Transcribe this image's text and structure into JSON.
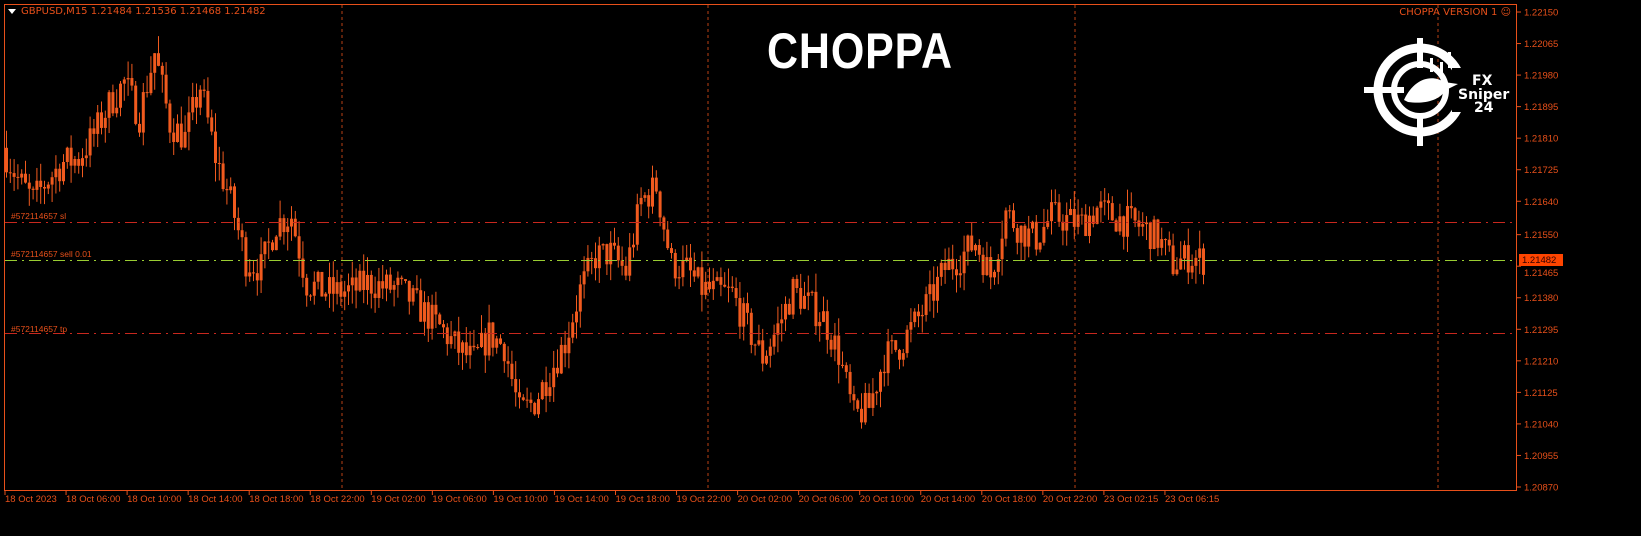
{
  "header": {
    "symbol_line": "GBPUSD,M15  1.21484 1.21536 1.21468 1.21482",
    "indicator_title": "CHOPPA",
    "version_label": "CHOPPA VERSION 1",
    "version_icon": "smiley-icon"
  },
  "logo": {
    "line1": "FX",
    "line2": "Sniper",
    "line3": "24"
  },
  "colors": {
    "candle": "#f05a1e",
    "axis": "#e8501a",
    "bid_line": "#9acd32",
    "sl_tp_line": "#c8281e",
    "grid": "#e8501a",
    "price_box": "#ff4500"
  },
  "orders": {
    "sl": {
      "label": "#572114657 sl",
      "price": 1.21585
    },
    "entry": {
      "label": "#572114657 sell 0.01",
      "price": 1.21482
    },
    "tp": {
      "label": "#572114657 tp",
      "price": 1.21285
    }
  },
  "current_price": "1.21482",
  "chart_data": {
    "type": "candlestick",
    "symbol": "GBPUSD",
    "timeframe": "M15",
    "ylim": [
      1.2087,
      1.2215
    ],
    "y_ticks": [
      "1.22150",
      "1.22065",
      "1.21980",
      "1.21895",
      "1.21810",
      "1.21725",
      "1.21640",
      "1.21550",
      "1.21465",
      "1.21380",
      "1.21295",
      "1.21210",
      "1.21125",
      "1.21040",
      "1.20955",
      "1.20870"
    ],
    "x_ticks": [
      "18 Oct 2023",
      "18 Oct 06:00",
      "18 Oct 10:00",
      "18 Oct 14:00",
      "18 Oct 18:00",
      "18 Oct 22:00",
      "19 Oct 02:00",
      "19 Oct 06:00",
      "19 Oct 10:00",
      "19 Oct 14:00",
      "19 Oct 18:00",
      "19 Oct 22:00",
      "20 Oct 02:00",
      "20 Oct 06:00",
      "20 Oct 10:00",
      "20 Oct 14:00",
      "20 Oct 18:00",
      "20 Oct 22:00",
      "23 Oct 02:15",
      "23 Oct 06:15"
    ],
    "grid": "vertical dashed separators",
    "hourly_closes": [
      1.21784,
      1.217,
      1.21643,
      1.217,
      1.21745,
      1.21755,
      1.2182,
      1.219,
      1.2196,
      1.2187,
      1.2204,
      1.2185,
      1.2181,
      1.2195,
      1.2176,
      1.2164,
      1.2148,
      1.2146,
      1.2158,
      1.216,
      1.2142,
      1.214,
      1.21395,
      1.214,
      1.2142,
      1.2141,
      1.21405,
      1.2137,
      1.2133,
      1.2129,
      1.2124,
      1.2121,
      1.2128,
      1.2125,
      1.2107,
      1.211,
      1.2118,
      1.2126,
      1.214,
      1.2149,
      1.215,
      1.2145,
      1.2164,
      1.2168,
      1.2147,
      1.21455,
      1.21405,
      1.21395,
      1.2139,
      1.213,
      1.2122,
      1.213,
      1.214,
      1.21365,
      1.21325,
      1.2123,
      1.2106,
      1.21085,
      1.2122,
      1.2125,
      1.2131,
      1.21374,
      1.2146,
      1.2149,
      1.2153,
      1.2144,
      1.2161,
      1.2156,
      1.2154,
      1.216,
      1.2159,
      1.2158,
      1.2162,
      1.216,
      1.21585,
      1.2157,
      1.2154,
      1.2147,
      1.2149,
      1.21482
    ]
  }
}
